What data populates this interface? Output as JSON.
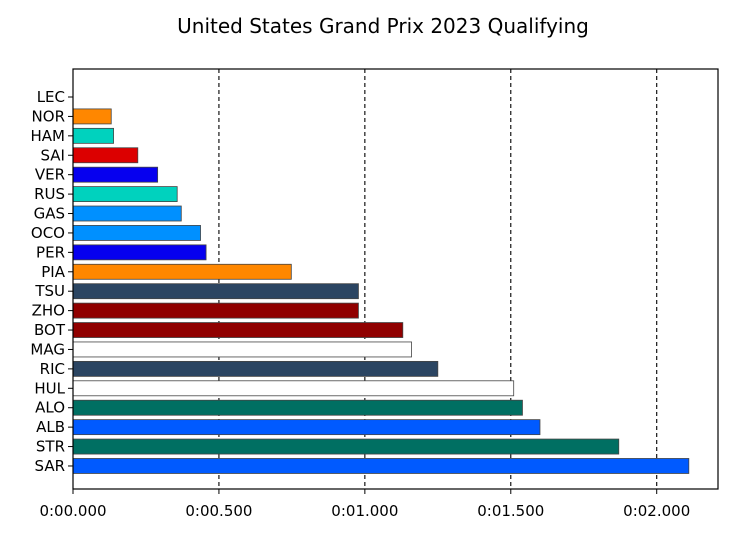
{
  "chart_data": {
    "type": "bar",
    "orientation": "horizontal",
    "title": "United States Grand Prix 2023 Qualifying",
    "xlabel": "",
    "ylabel": "",
    "xlim": [
      0,
      2.21
    ],
    "grid": "vertical dashed lines on x ticks",
    "x_ticks": [
      0,
      0.5,
      1.0,
      1.5,
      2.0
    ],
    "x_tick_labels": [
      "0:00.000",
      "0:00.500",
      "0:01.000",
      "0:01.500",
      "0:02.000"
    ],
    "categories": [
      "LEC",
      "NOR",
      "HAM",
      "SAI",
      "VER",
      "RUS",
      "GAS",
      "OCO",
      "PER",
      "PIA",
      "TSU",
      "ZHO",
      "BOT",
      "MAG",
      "RIC",
      "HUL",
      "ALO",
      "ALB",
      "STR",
      "SAR"
    ],
    "values": [
      0.0,
      0.131,
      0.139,
      0.222,
      0.29,
      0.357,
      0.371,
      0.437,
      0.456,
      0.748,
      0.978,
      0.978,
      1.13,
      1.16,
      1.25,
      1.51,
      1.54,
      1.6,
      1.87,
      2.11
    ],
    "colors": [
      "#DC0000",
      "#FF8700",
      "#00D2BE",
      "#DC0000",
      "#0600EF",
      "#00D2BE",
      "#0090FF",
      "#0090FF",
      "#0600EF",
      "#FF8700",
      "#2B4562",
      "#900000",
      "#900000",
      "#FFFFFF",
      "#2B4562",
      "#FFFFFF",
      "#006F62",
      "#005AFF",
      "#006F62",
      "#005AFF"
    ]
  }
}
